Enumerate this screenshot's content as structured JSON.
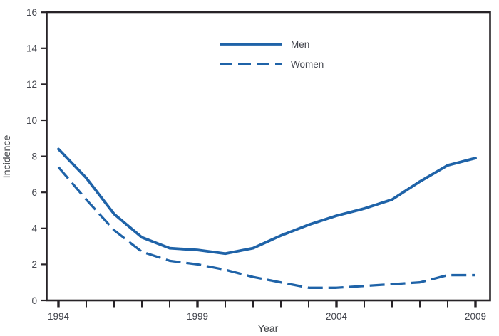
{
  "chart_data": {
    "type": "line",
    "xlabel": "Year",
    "ylabel": "Incidence",
    "x": [
      1994,
      1995,
      1996,
      1997,
      1998,
      1999,
      2000,
      2001,
      2002,
      2003,
      2004,
      2005,
      2006,
      2007,
      2008,
      2009
    ],
    "series": [
      {
        "name": "Men",
        "dash": "solid",
        "values": [
          8.4,
          6.8,
          4.8,
          3.5,
          2.9,
          2.8,
          2.6,
          2.9,
          3.6,
          4.2,
          4.7,
          5.1,
          5.6,
          6.6,
          7.5,
          7.9
        ]
      },
      {
        "name": "Women",
        "dash": "dashed",
        "values": [
          7.4,
          5.6,
          3.9,
          2.7,
          2.2,
          2.0,
          1.7,
          1.3,
          1.0,
          0.7,
          0.7,
          0.8,
          0.9,
          1.0,
          1.4,
          1.4
        ]
      }
    ],
    "xlim": [
      1994,
      2009
    ],
    "ylim": [
      0,
      16
    ],
    "yticks": [
      0,
      2,
      4,
      6,
      8,
      10,
      12,
      14,
      16
    ],
    "xticks_minor_every_year": true,
    "xtick_labels": [
      1994,
      1999,
      2004,
      2009
    ],
    "grid": false,
    "legend_position": "top-center",
    "colors": {
      "line": "#1f63a8",
      "axis": "#272327",
      "tick_label": "#45474f",
      "axis_title": "#3f4145",
      "background": "#ffffff"
    }
  }
}
